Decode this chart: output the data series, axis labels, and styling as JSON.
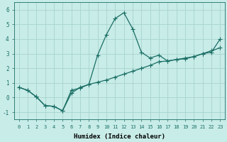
{
  "xlabel": "Humidex (Indice chaleur)",
  "bg_color": "#c8ece8",
  "grid_color": "#a8d4ce",
  "line_color": "#1a6e64",
  "xlim": [
    -0.5,
    23.5
  ],
  "ylim": [
    -1.5,
    6.5
  ],
  "xticks": [
    0,
    1,
    2,
    3,
    4,
    5,
    6,
    7,
    8,
    9,
    10,
    11,
    12,
    13,
    14,
    15,
    16,
    17,
    18,
    19,
    20,
    21,
    22,
    23
  ],
  "yticks": [
    -1,
    0,
    1,
    2,
    3,
    4,
    5,
    6
  ],
  "series1_x": [
    0,
    1,
    2,
    3,
    4,
    5,
    6,
    7,
    8,
    9,
    10,
    11,
    12,
    13,
    14,
    15,
    16,
    17,
    18,
    19,
    20,
    21,
    22,
    23
  ],
  "series1_y": [
    0.7,
    0.5,
    0.05,
    -0.55,
    -0.6,
    -0.9,
    0.5,
    0.65,
    0.9,
    2.9,
    4.3,
    5.4,
    5.8,
    4.7,
    3.1,
    2.7,
    2.9,
    2.5,
    2.6,
    2.65,
    2.8,
    3.0,
    3.1,
    4.0
  ],
  "series2_x": [
    0,
    1,
    2,
    3,
    4,
    5,
    6,
    7,
    8,
    9,
    10,
    11,
    12,
    13,
    14,
    15,
    16,
    17,
    18,
    19,
    20,
    21,
    22,
    23
  ],
  "series2_y": [
    0.7,
    0.5,
    0.05,
    -0.55,
    -0.6,
    -0.9,
    0.3,
    0.7,
    0.9,
    1.05,
    1.2,
    1.4,
    1.6,
    1.8,
    2.0,
    2.2,
    2.45,
    2.5,
    2.6,
    2.7,
    2.8,
    3.0,
    3.2,
    3.4
  ]
}
